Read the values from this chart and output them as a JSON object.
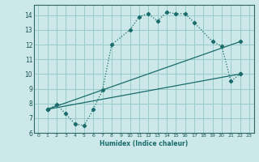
{
  "xlabel": "Humidex (Indice chaleur)",
  "bg_color": "#cce8e8",
  "grid_color": "#99cccc",
  "line_color": "#1a6b6b",
  "xlim": [
    -0.5,
    23.5
  ],
  "ylim": [
    6,
    14.7
  ],
  "yticks": [
    6,
    7,
    8,
    9,
    10,
    11,
    12,
    13,
    14
  ],
  "xticks": [
    0,
    1,
    2,
    3,
    4,
    5,
    6,
    7,
    8,
    9,
    10,
    11,
    12,
    13,
    14,
    15,
    16,
    17,
    18,
    19,
    20,
    21,
    22,
    23
  ],
  "curve1_x": [
    1,
    2,
    3,
    4,
    5,
    6,
    7,
    8,
    10,
    11,
    12,
    13,
    14,
    15,
    16,
    17,
    19,
    20,
    21,
    22
  ],
  "curve1_y": [
    7.6,
    7.9,
    7.3,
    6.6,
    6.5,
    7.6,
    8.9,
    12.0,
    13.0,
    13.9,
    14.1,
    13.6,
    14.2,
    14.1,
    14.1,
    13.5,
    12.2,
    11.9,
    9.5,
    10.0
  ],
  "line2_x": [
    1,
    22
  ],
  "line2_y": [
    7.6,
    10.0
  ],
  "line3_x": [
    1,
    22
  ],
  "line3_y": [
    7.6,
    12.2
  ]
}
